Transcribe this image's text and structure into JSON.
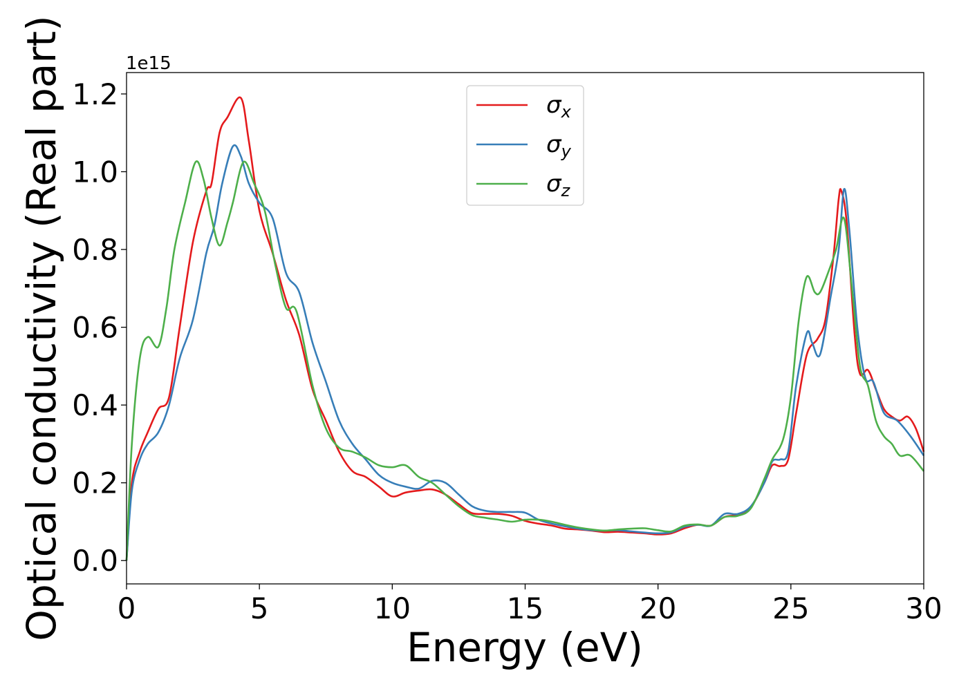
{
  "chart_data": {
    "type": "line",
    "xlabel": "Energy (eV)",
    "ylabel": "Optical conductivity (Real part)",
    "y_scale_label": "1e15",
    "xlim": [
      0,
      30
    ],
    "ylim": [
      -0.06,
      1.255
    ],
    "x_ticks": [
      0,
      5,
      10,
      15,
      20,
      25,
      30
    ],
    "x_tick_labels": [
      "0",
      "5",
      "10",
      "15",
      "20",
      "25",
      "30"
    ],
    "y_ticks": [
      0.0,
      0.2,
      0.4,
      0.6,
      0.8,
      1.0,
      1.2
    ],
    "y_tick_labels": [
      "0.0",
      "0.2",
      "0.4",
      "0.6",
      "0.8",
      "1.0",
      "1.2"
    ],
    "grid": false,
    "legend_position": "upper-center",
    "series": [
      {
        "name": "σx",
        "symbol": "σ",
        "subscript": "x",
        "color": "#e41a1c",
        "points": [
          [
            0,
            0.0
          ],
          [
            0.2,
            0.2
          ],
          [
            0.5,
            0.28
          ],
          [
            0.8,
            0.33
          ],
          [
            1.2,
            0.39
          ],
          [
            1.6,
            0.42
          ],
          [
            2.0,
            0.6
          ],
          [
            2.5,
            0.82
          ],
          [
            3.0,
            0.95
          ],
          [
            3.2,
            0.97
          ],
          [
            3.5,
            1.1
          ],
          [
            3.8,
            1.14
          ],
          [
            4.3,
            1.19
          ],
          [
            4.6,
            1.08
          ],
          [
            5.0,
            0.9
          ],
          [
            5.5,
            0.79
          ],
          [
            6.0,
            0.67
          ],
          [
            6.5,
            0.58
          ],
          [
            7.0,
            0.44
          ],
          [
            7.5,
            0.36
          ],
          [
            8.0,
            0.28
          ],
          [
            8.5,
            0.23
          ],
          [
            9.0,
            0.215
          ],
          [
            9.5,
            0.19
          ],
          [
            10.0,
            0.165
          ],
          [
            10.5,
            0.175
          ],
          [
            11.0,
            0.18
          ],
          [
            11.5,
            0.183
          ],
          [
            12.0,
            0.17
          ],
          [
            12.5,
            0.145
          ],
          [
            13.0,
            0.122
          ],
          [
            13.5,
            0.12
          ],
          [
            14.0,
            0.12
          ],
          [
            14.5,
            0.115
          ],
          [
            15.0,
            0.102
          ],
          [
            15.5,
            0.095
          ],
          [
            16.0,
            0.09
          ],
          [
            16.5,
            0.082
          ],
          [
            17.0,
            0.08
          ],
          [
            17.5,
            0.077
          ],
          [
            18.0,
            0.073
          ],
          [
            18.5,
            0.074
          ],
          [
            19.0,
            0.072
          ],
          [
            19.5,
            0.07
          ],
          [
            20.0,
            0.067
          ],
          [
            20.5,
            0.07
          ],
          [
            21.0,
            0.083
          ],
          [
            21.5,
            0.092
          ],
          [
            22.0,
            0.09
          ],
          [
            22.5,
            0.112
          ],
          [
            23.0,
            0.118
          ],
          [
            23.5,
            0.138
          ],
          [
            24.0,
            0.2
          ],
          [
            24.3,
            0.245
          ],
          [
            24.6,
            0.243
          ],
          [
            24.9,
            0.26
          ],
          [
            25.2,
            0.38
          ],
          [
            25.6,
            0.53
          ],
          [
            26.0,
            0.57
          ],
          [
            26.3,
            0.62
          ],
          [
            26.6,
            0.78
          ],
          [
            26.8,
            0.93
          ],
          [
            26.9,
            0.95
          ],
          [
            27.1,
            0.87
          ],
          [
            27.4,
            0.58
          ],
          [
            27.6,
            0.48
          ],
          [
            27.9,
            0.49
          ],
          [
            28.2,
            0.44
          ],
          [
            28.5,
            0.39
          ],
          [
            28.8,
            0.37
          ],
          [
            29.1,
            0.36
          ],
          [
            29.4,
            0.37
          ],
          [
            29.7,
            0.34
          ],
          [
            30.0,
            0.28
          ]
        ]
      },
      {
        "name": "σy",
        "symbol": "σ",
        "subscript": "y",
        "color": "#377eb8",
        "points": [
          [
            0,
            0.0
          ],
          [
            0.2,
            0.18
          ],
          [
            0.5,
            0.26
          ],
          [
            0.8,
            0.3
          ],
          [
            1.2,
            0.33
          ],
          [
            1.6,
            0.4
          ],
          [
            2.0,
            0.52
          ],
          [
            2.5,
            0.62
          ],
          [
            3.0,
            0.79
          ],
          [
            3.3,
            0.86
          ],
          [
            3.6,
            0.97
          ],
          [
            4.0,
            1.065
          ],
          [
            4.3,
            1.04
          ],
          [
            4.6,
            0.97
          ],
          [
            5.0,
            0.92
          ],
          [
            5.5,
            0.88
          ],
          [
            6.0,
            0.74
          ],
          [
            6.5,
            0.69
          ],
          [
            7.0,
            0.56
          ],
          [
            7.5,
            0.46
          ],
          [
            8.0,
            0.36
          ],
          [
            8.5,
            0.3
          ],
          [
            9.0,
            0.26
          ],
          [
            9.5,
            0.22
          ],
          [
            10.0,
            0.2
          ],
          [
            10.5,
            0.19
          ],
          [
            11.0,
            0.185
          ],
          [
            11.5,
            0.205
          ],
          [
            12.0,
            0.2
          ],
          [
            12.5,
            0.17
          ],
          [
            13.0,
            0.14
          ],
          [
            13.5,
            0.128
          ],
          [
            14.0,
            0.125
          ],
          [
            14.5,
            0.125
          ],
          [
            15.0,
            0.123
          ],
          [
            15.5,
            0.105
          ],
          [
            16.0,
            0.095
          ],
          [
            16.5,
            0.088
          ],
          [
            17.0,
            0.082
          ],
          [
            17.5,
            0.078
          ],
          [
            18.0,
            0.077
          ],
          [
            18.5,
            0.078
          ],
          [
            19.0,
            0.075
          ],
          [
            19.5,
            0.072
          ],
          [
            20.0,
            0.07
          ],
          [
            20.5,
            0.073
          ],
          [
            21.0,
            0.087
          ],
          [
            21.5,
            0.092
          ],
          [
            22.0,
            0.09
          ],
          [
            22.5,
            0.12
          ],
          [
            23.0,
            0.12
          ],
          [
            23.5,
            0.14
          ],
          [
            24.0,
            0.2
          ],
          [
            24.3,
            0.255
          ],
          [
            24.6,
            0.26
          ],
          [
            24.9,
            0.28
          ],
          [
            25.2,
            0.45
          ],
          [
            25.6,
            0.585
          ],
          [
            25.8,
            0.56
          ],
          [
            26.1,
            0.53
          ],
          [
            26.5,
            0.68
          ],
          [
            26.8,
            0.8
          ],
          [
            27.0,
            0.955
          ],
          [
            27.2,
            0.85
          ],
          [
            27.5,
            0.6
          ],
          [
            27.8,
            0.47
          ],
          [
            28.1,
            0.46
          ],
          [
            28.5,
            0.38
          ],
          [
            29.0,
            0.36
          ],
          [
            29.5,
            0.32
          ],
          [
            30.0,
            0.27
          ]
        ]
      },
      {
        "name": "σz",
        "symbol": "σ",
        "subscript": "z",
        "color": "#4daf4a",
        "points": [
          [
            0,
            0.0
          ],
          [
            0.2,
            0.3
          ],
          [
            0.5,
            0.52
          ],
          [
            0.8,
            0.575
          ],
          [
            1.2,
            0.55
          ],
          [
            1.5,
            0.65
          ],
          [
            1.8,
            0.8
          ],
          [
            2.2,
            0.92
          ],
          [
            2.6,
            1.025
          ],
          [
            2.9,
            0.98
          ],
          [
            3.2,
            0.88
          ],
          [
            3.5,
            0.81
          ],
          [
            3.8,
            0.87
          ],
          [
            4.0,
            0.92
          ],
          [
            4.4,
            1.025
          ],
          [
            4.8,
            0.97
          ],
          [
            5.2,
            0.9
          ],
          [
            5.6,
            0.76
          ],
          [
            6.0,
            0.65
          ],
          [
            6.4,
            0.64
          ],
          [
            7.0,
            0.45
          ],
          [
            7.5,
            0.34
          ],
          [
            8.0,
            0.29
          ],
          [
            8.5,
            0.28
          ],
          [
            9.0,
            0.265
          ],
          [
            9.5,
            0.245
          ],
          [
            10.0,
            0.24
          ],
          [
            10.5,
            0.245
          ],
          [
            11.0,
            0.215
          ],
          [
            11.5,
            0.2
          ],
          [
            12.0,
            0.17
          ],
          [
            12.5,
            0.14
          ],
          [
            13.0,
            0.117
          ],
          [
            13.5,
            0.11
          ],
          [
            14.0,
            0.105
          ],
          [
            14.5,
            0.1
          ],
          [
            15.0,
            0.105
          ],
          [
            15.5,
            0.105
          ],
          [
            16.0,
            0.1
          ],
          [
            16.5,
            0.092
          ],
          [
            17.0,
            0.085
          ],
          [
            17.5,
            0.08
          ],
          [
            18.0,
            0.077
          ],
          [
            18.5,
            0.08
          ],
          [
            19.0,
            0.082
          ],
          [
            19.5,
            0.083
          ],
          [
            20.0,
            0.078
          ],
          [
            20.5,
            0.075
          ],
          [
            21.0,
            0.09
          ],
          [
            21.5,
            0.093
          ],
          [
            22.0,
            0.09
          ],
          [
            22.5,
            0.112
          ],
          [
            23.0,
            0.115
          ],
          [
            23.5,
            0.135
          ],
          [
            24.0,
            0.21
          ],
          [
            24.3,
            0.26
          ],
          [
            24.7,
            0.31
          ],
          [
            25.0,
            0.42
          ],
          [
            25.3,
            0.62
          ],
          [
            25.6,
            0.73
          ],
          [
            25.9,
            0.69
          ],
          [
            26.1,
            0.69
          ],
          [
            26.4,
            0.74
          ],
          [
            26.7,
            0.8
          ],
          [
            27.0,
            0.88
          ],
          [
            27.3,
            0.7
          ],
          [
            27.6,
            0.5
          ],
          [
            27.9,
            0.45
          ],
          [
            28.2,
            0.36
          ],
          [
            28.5,
            0.32
          ],
          [
            28.8,
            0.3
          ],
          [
            29.1,
            0.27
          ],
          [
            29.5,
            0.27
          ],
          [
            30.0,
            0.23
          ]
        ]
      }
    ]
  }
}
